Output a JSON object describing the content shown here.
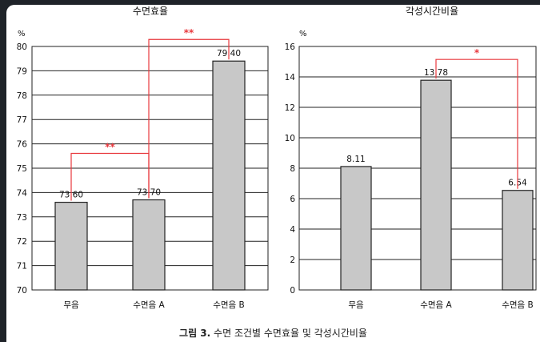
{
  "figure_caption": {
    "label": "그림 3.",
    "text": "수면 조건별 수면효율 및 각성시간비율"
  },
  "colors": {
    "bar_fill": "#c8c8c8",
    "bar_stroke": "#222222",
    "grid": "#222222",
    "annotation": "#e8383d",
    "background": "#ffffff"
  },
  "chart_data": [
    {
      "type": "bar",
      "title": "수면효율",
      "ylabel": "%",
      "ylim": [
        70,
        80
      ],
      "yticks": [
        70,
        71,
        72,
        73,
        74,
        75,
        76,
        77,
        78,
        79,
        80
      ],
      "grid": true,
      "categories": [
        "무음",
        "수면음 A",
        "수면음 B"
      ],
      "values": [
        73.6,
        73.7,
        79.4
      ],
      "value_labels": [
        "73.60",
        "73.70",
        "79.40"
      ],
      "significance": [
        {
          "from": 0,
          "to": 1,
          "label": "**"
        },
        {
          "from": 1,
          "to": 2,
          "label": "**"
        }
      ]
    },
    {
      "type": "bar",
      "title": "각성시간비율",
      "ylabel": "%",
      "ylim": [
        0,
        16
      ],
      "yticks": [
        0,
        2,
        4,
        6,
        8,
        10,
        12,
        14,
        16
      ],
      "grid": true,
      "categories": [
        "무음",
        "수면음 A",
        "수면음 B"
      ],
      "values": [
        8.11,
        13.78,
        6.54
      ],
      "value_labels": [
        "8.11",
        "13.78",
        "6.54"
      ],
      "significance": [
        {
          "from": 1,
          "to": 2,
          "label": "*"
        }
      ]
    }
  ]
}
